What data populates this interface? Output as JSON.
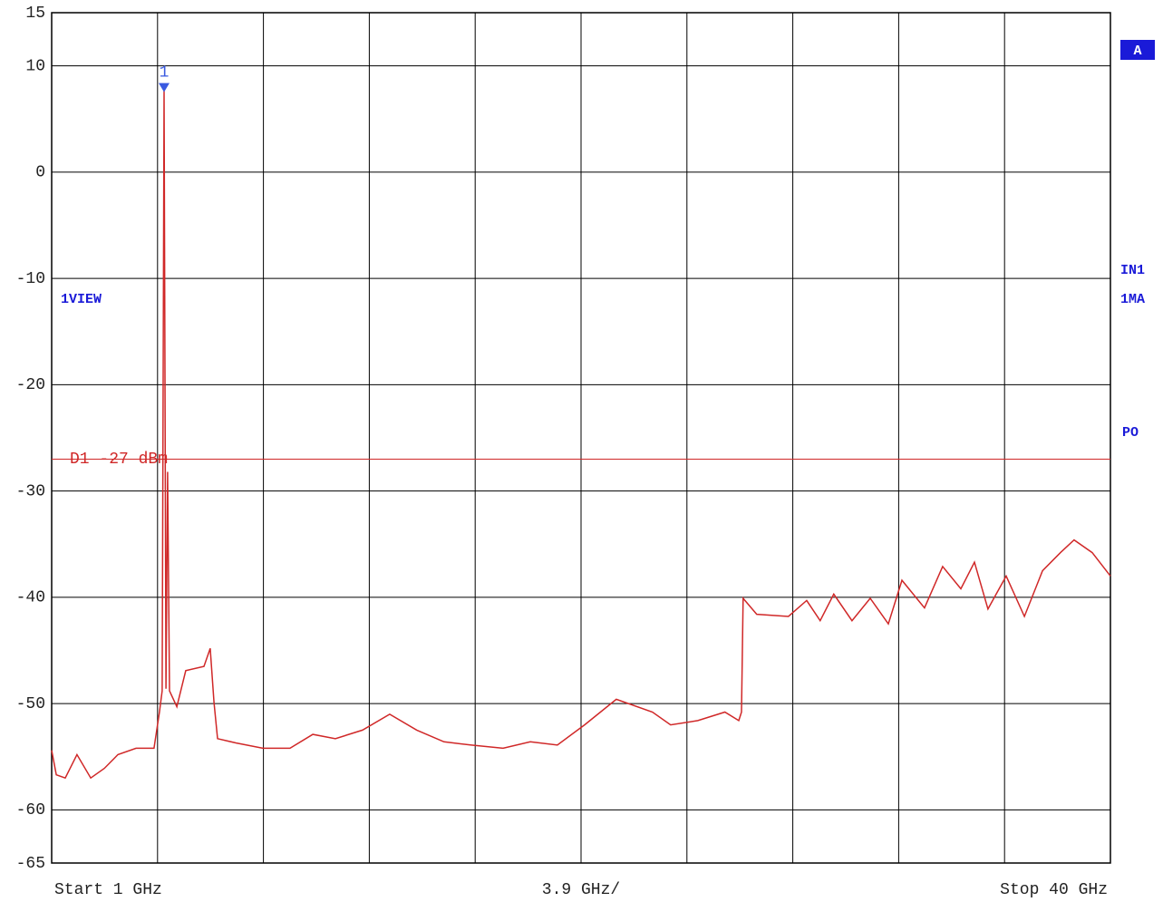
{
  "chart_data": {
    "type": "line",
    "xlim": [
      1,
      40
    ],
    "xticks": [
      1,
      4.9,
      8.8,
      12.7,
      16.6,
      20.5,
      24.4,
      28.3,
      32.2,
      36.1,
      40
    ],
    "ylim": [
      -65,
      15
    ],
    "yticks": [
      15,
      10,
      0,
      -10,
      -20,
      -30,
      -40,
      -50,
      -60,
      -65
    ],
    "grid": true,
    "color": "#d02828",
    "x": [
      1.0,
      1.17,
      1.5,
      1.93,
      2.44,
      2.94,
      3.44,
      4.11,
      4.77,
      4.97,
      5.07,
      5.14,
      5.21,
      5.27,
      5.34,
      5.61,
      5.94,
      6.61,
      6.84,
      6.98,
      7.11,
      7.78,
      8.78,
      9.78,
      10.62,
      11.45,
      12.45,
      13.45,
      14.45,
      15.45,
      16.46,
      17.63,
      18.63,
      19.63,
      20.63,
      21.8,
      23.13,
      23.8,
      24.8,
      25.8,
      26.31,
      26.41,
      26.47,
      26.97,
      28.14,
      28.81,
      29.31,
      29.81,
      30.48,
      31.15,
      31.82,
      32.32,
      33.15,
      33.82,
      34.49,
      34.99,
      35.49,
      36.16,
      36.83,
      37.5,
      38.16,
      38.66,
      39.33,
      40.0
    ],
    "values": [
      -54.4,
      -56.7,
      -57.0,
      -54.8,
      -57.0,
      -56.1,
      -54.8,
      -54.2,
      -54.2,
      -50.8,
      -48.8,
      7.7,
      -48.6,
      -28.2,
      -48.8,
      -50.3,
      -46.9,
      -46.5,
      -44.8,
      -49.9,
      -53.3,
      -53.7,
      -54.2,
      -54.2,
      -52.9,
      -53.3,
      -52.5,
      -51.0,
      -52.5,
      -53.6,
      -53.9,
      -54.2,
      -53.6,
      -53.9,
      -52.0,
      -49.6,
      -50.8,
      -52.0,
      -51.6,
      -50.8,
      -51.6,
      -50.8,
      -40.1,
      -41.6,
      -41.8,
      -40.3,
      -42.2,
      -39.7,
      -42.2,
      -40.1,
      -42.5,
      -38.4,
      -41.0,
      -37.1,
      -39.2,
      -36.7,
      -41.1,
      -38.0,
      -41.8,
      -37.5,
      -35.8,
      -34.6,
      -35.8,
      -38.0
    ],
    "display_line": {
      "label": "D1 -27 dBm",
      "value": -27
    },
    "marker": {
      "label": "1",
      "x": 5.14,
      "y": 7.7
    },
    "start_label": "Start 1 GHz",
    "span_label": "3.9 GHz/",
    "stop_label": "Stop 40 GHz",
    "view_label": "1VIEW",
    "screen_label": "A",
    "side_labels": [
      "IN1",
      "1MA",
      "PO"
    ]
  }
}
